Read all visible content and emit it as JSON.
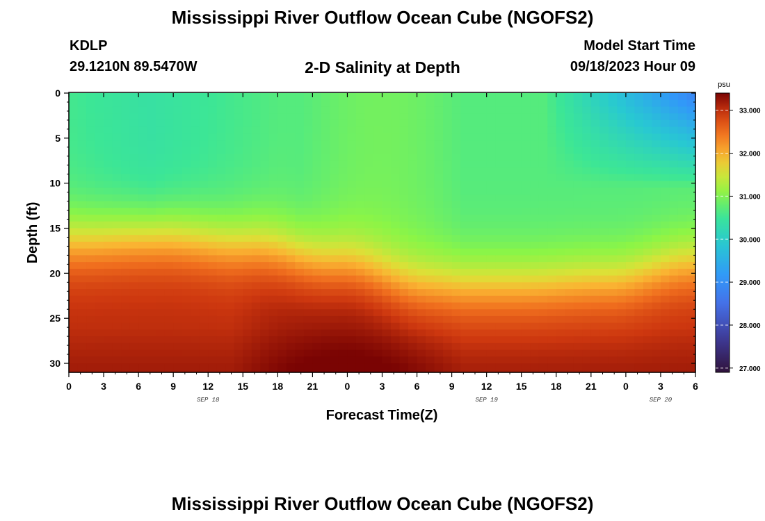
{
  "header": {
    "title": "Mississippi River Outflow Ocean Cube (NGOFS2)",
    "station": "KDLP",
    "coords": "29.1210N  89.5470W",
    "subtitle": "2-D Salinity at Depth",
    "start_label": "Model Start Time",
    "start_value": "09/18/2023 Hour 09"
  },
  "footer": {
    "title": "Mississippi River Outflow Ocean Cube (NGOFS2)"
  },
  "chart_data": {
    "type": "heatmap",
    "title": "2-D Salinity at Depth",
    "xlabel": "Forecast Time(Z)",
    "ylabel": "Depth (ft)",
    "x_ticks": [
      "0",
      "3",
      "6",
      "9",
      "12",
      "15",
      "18",
      "21",
      "0",
      "3",
      "6",
      "9",
      "12",
      "15",
      "18",
      "21",
      "0",
      "3",
      "6"
    ],
    "x_hours": [
      0,
      3,
      6,
      9,
      12,
      15,
      18,
      21,
      24,
      27,
      30,
      33,
      36,
      39,
      42,
      45,
      48,
      51,
      54
    ],
    "date_labels": [
      {
        "text": "SEP 18",
        "hour": 12
      },
      {
        "text": "SEP 19",
        "hour": 36
      },
      {
        "text": "SEP 20",
        "hour": 51
      }
    ],
    "xlim": [
      0,
      54
    ],
    "y_ticks": [
      "0",
      "5",
      "10",
      "15",
      "20",
      "25",
      "30"
    ],
    "y_values": [
      0,
      5,
      10,
      15,
      20,
      25,
      30
    ],
    "ylim": [
      0,
      31
    ],
    "colorbar": {
      "units": "psu",
      "range": [
        26.9,
        33.4
      ],
      "ticks": [
        "27.000",
        "28.000",
        "29.000",
        "30.000",
        "31.000",
        "32.000",
        "33.000"
      ],
      "tick_values": [
        27,
        28,
        29,
        30,
        31,
        32,
        33
      ]
    },
    "description_values": {
      "surface_salinity_typical": 30.7,
      "surface_salinity_min_late": 28.7,
      "bottom_salinity_max": 33.4,
      "halocline_depth_ft": [
        16.5,
        16.0,
        17.0,
        19.0,
        21.5,
        21.5,
        21.0,
        19.0
      ]
    }
  }
}
